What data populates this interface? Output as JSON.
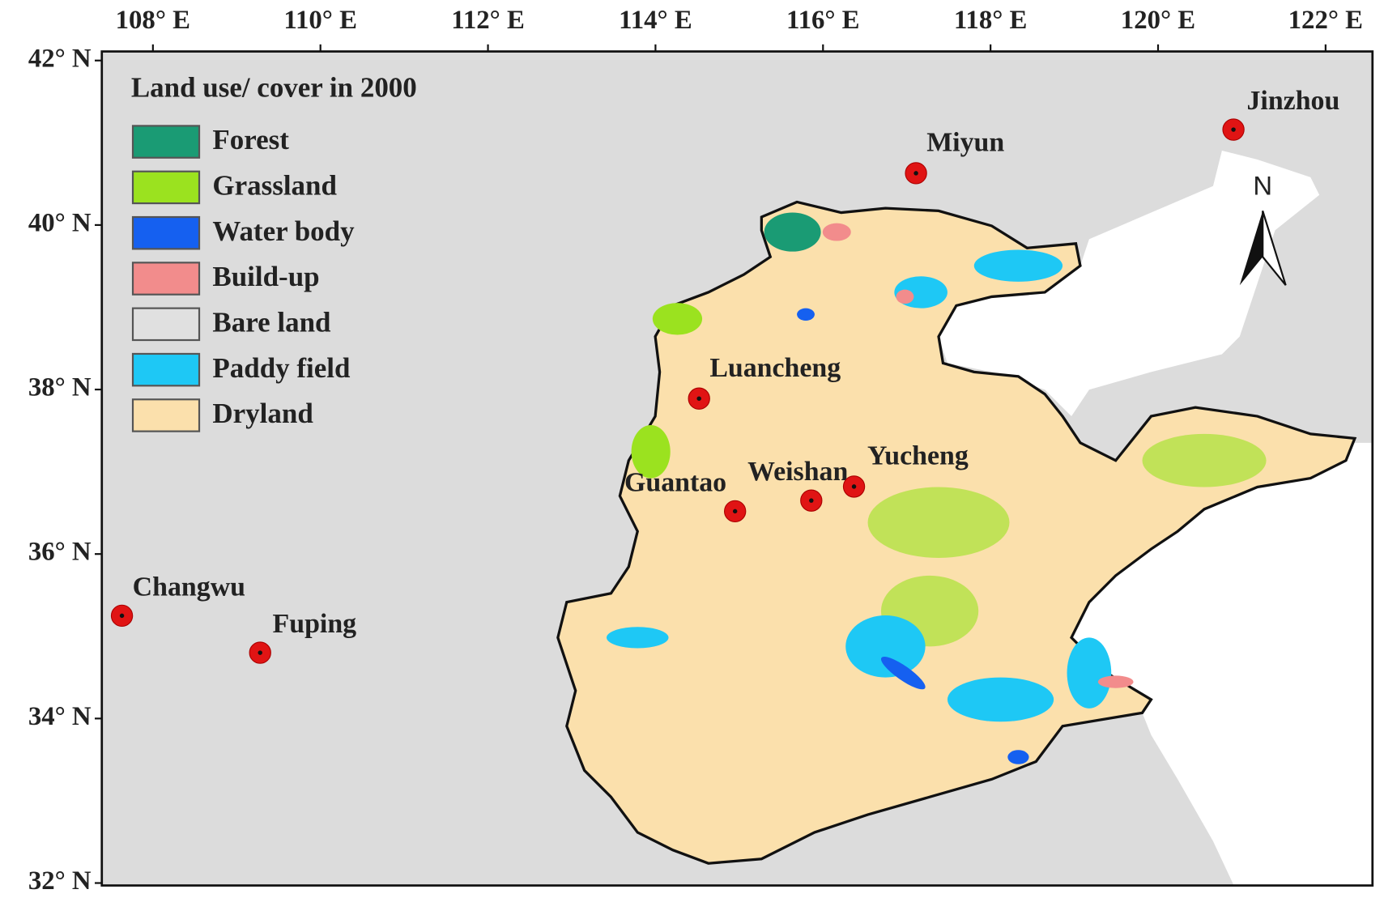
{
  "map": {
    "legend": {
      "title": "Land use/ cover  in 2000",
      "items": [
        {
          "label": "Forest",
          "color": "#1a9b74"
        },
        {
          "label": "Grassland",
          "color": "#9be21f"
        },
        {
          "label": "Water body",
          "color": "#1560f0"
        },
        {
          "label": "Build-up",
          "color": "#f28c8c"
        },
        {
          "label": "Bare land",
          "color": "#e0e0e0"
        },
        {
          "label": "Paddy field",
          "color": "#1ec8f5"
        },
        {
          "label": "Dryland",
          "color": "#fbe0ac"
        }
      ]
    },
    "xlim": [
      107.39,
      122.56
    ],
    "ylim": [
      31.97,
      42.11
    ],
    "lon_ticks": [
      {
        "value": 108,
        "label": "108° E"
      },
      {
        "value": 110,
        "label": "110° E"
      },
      {
        "value": 112,
        "label": "112° E"
      },
      {
        "value": 114,
        "label": "114° E"
      },
      {
        "value": 116,
        "label": "116° E"
      },
      {
        "value": 118,
        "label": "118° E"
      },
      {
        "value": 120,
        "label": "120° E"
      },
      {
        "value": 122,
        "label": "122° E"
      }
    ],
    "lat_ticks": [
      {
        "value": 42,
        "label": "42° N"
      },
      {
        "value": 40,
        "label": "40° N"
      },
      {
        "value": 38,
        "label": "38° N"
      },
      {
        "value": 36,
        "label": "36° N"
      },
      {
        "value": 34,
        "label": "34° N"
      },
      {
        "value": 32,
        "label": "32° N"
      }
    ],
    "sites": [
      {
        "name": "Jinzhou",
        "lon": 120.9,
        "lat": 41.16
      },
      {
        "name": "Miyun",
        "lon": 117.11,
        "lat": 40.63
      },
      {
        "name": "Luancheng",
        "lon": 114.52,
        "lat": 37.89
      },
      {
        "name": "Guantao",
        "lon": 114.95,
        "lat": 36.52
      },
      {
        "name": "Weishan",
        "lon": 115.86,
        "lat": 36.65
      },
      {
        "name": "Yucheng",
        "lon": 116.37,
        "lat": 36.82
      },
      {
        "name": "Changwu",
        "lon": 107.63,
        "lat": 35.25
      },
      {
        "name": "Fuping",
        "lon": 109.28,
        "lat": 34.8
      }
    ],
    "north_label": "N"
  }
}
